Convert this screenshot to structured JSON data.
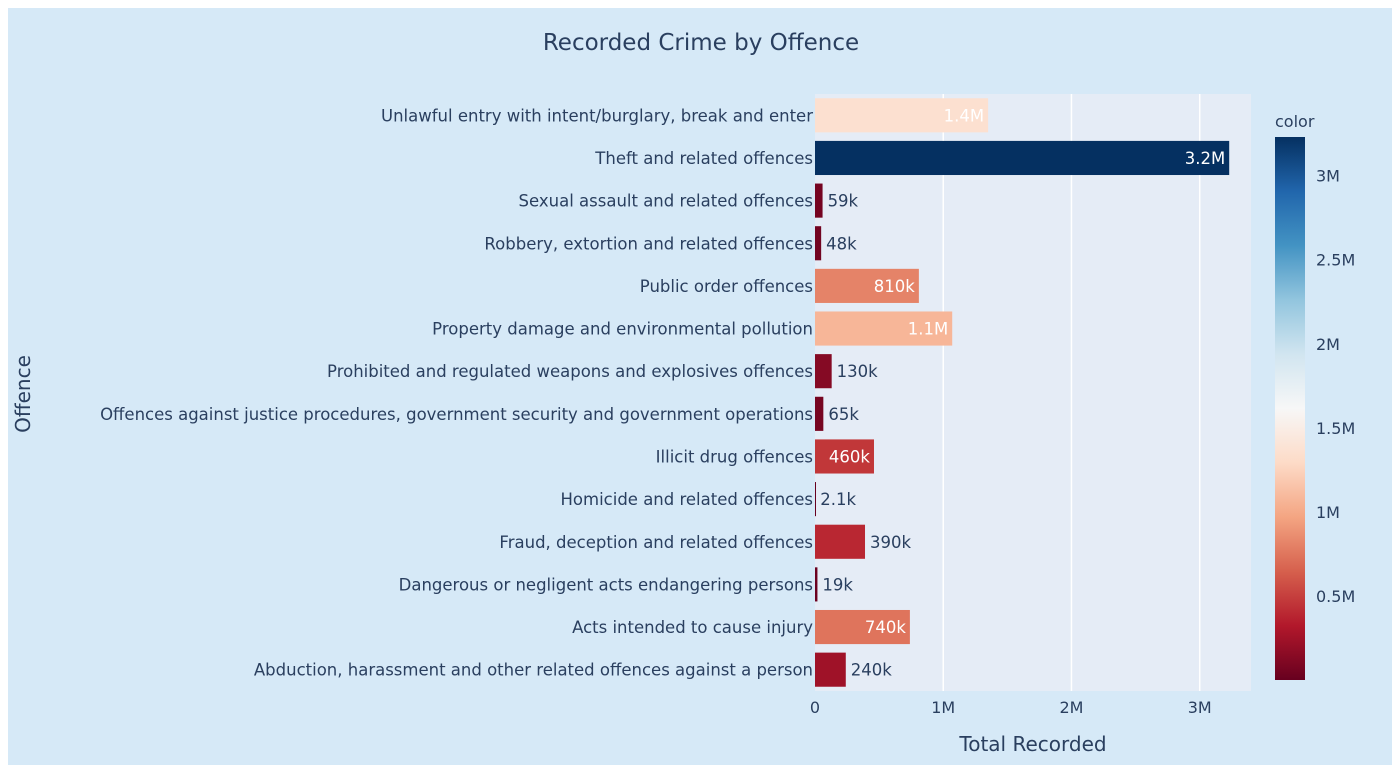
{
  "chart_data": {
    "type": "bar",
    "orientation": "horizontal",
    "title": "Recorded Crime by Offence",
    "xlabel": "Total Recorded",
    "ylabel": "Offence",
    "xlim": [
      0,
      3400000
    ],
    "xticks": [
      {
        "value": 0,
        "label": "0"
      },
      {
        "value": 1000000,
        "label": "1M"
      },
      {
        "value": 2000000,
        "label": "2M"
      },
      {
        "value": 3000000,
        "label": "3M"
      }
    ],
    "grid": true,
    "categories": [
      "Unlawful entry with intent/burglary, break and enter",
      "Theft and related offences",
      "Sexual assault and related offences",
      "Robbery, extortion and related offences",
      "Public order offences",
      "Property damage and environmental pollution",
      "Prohibited and regulated weapons and explosives offences",
      "Offences against justice procedures, government security and government operations",
      "Illicit drug offences",
      "Homicide and related offences",
      "Fraud, deception and related offences",
      "Dangerous or negligent acts endangering persons",
      "Acts intended to cause injury",
      "Abduction, harassment and other related offences against a person"
    ],
    "values": [
      1350000,
      3230000,
      59000,
      48000,
      810000,
      1070000,
      130000,
      65000,
      460000,
      2100,
      390000,
      19000,
      740000,
      240000
    ],
    "data_labels": [
      "1.4M",
      "3.2M",
      "59k",
      "48k",
      "810k",
      "1.1M",
      "130k",
      "65k",
      "460k",
      "2.1k",
      "390k",
      "19k",
      "740k",
      "240k"
    ],
    "colorbar": {
      "title": "color",
      "range": [
        0,
        3230000
      ],
      "ticks": [
        {
          "value": 500000,
          "label": "0.5M"
        },
        {
          "value": 1000000,
          "label": "1M"
        },
        {
          "value": 1500000,
          "label": "1.5M"
        },
        {
          "value": 2000000,
          "label": "2M"
        },
        {
          "value": 2500000,
          "label": "2.5M"
        },
        {
          "value": 3000000,
          "label": "3M"
        }
      ],
      "colorscale": [
        "#67001f",
        "#b2182b",
        "#d6604d",
        "#f4a582",
        "#fddbc7",
        "#f7f7f7",
        "#d1e5f0",
        "#92c5de",
        "#4393c3",
        "#2166ac",
        "#053061"
      ]
    },
    "colors": {
      "paper": "#d6e9f7",
      "plot": "#e5ecf6",
      "grid": "#ffffff",
      "text": "#2a3f5f"
    }
  }
}
